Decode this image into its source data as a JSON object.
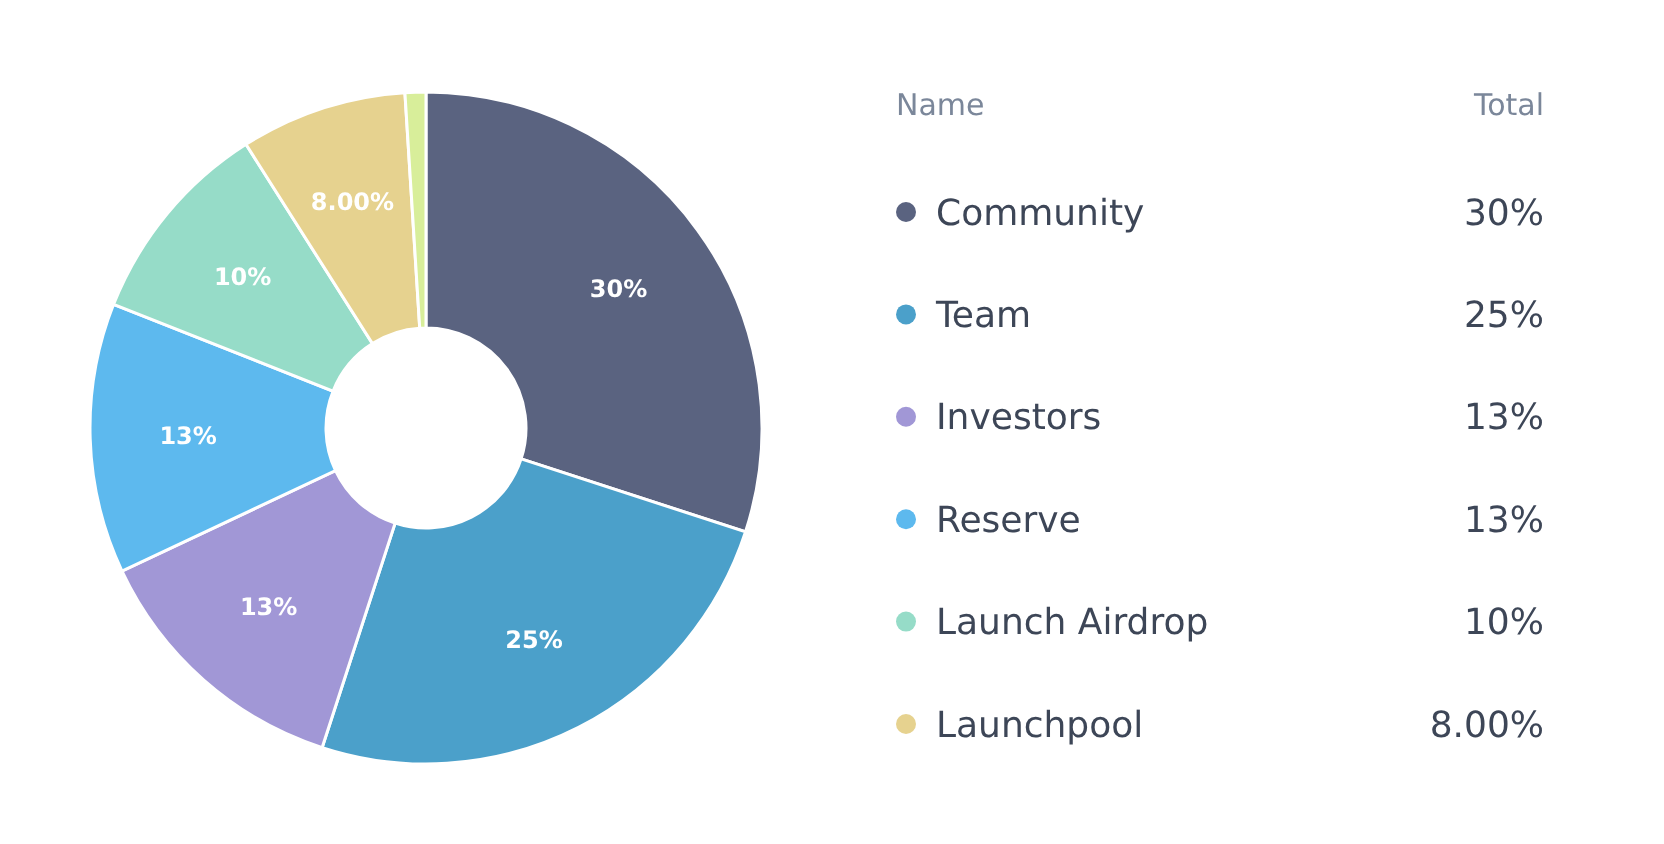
{
  "chart_data": {
    "type": "donut",
    "categories": [
      "Community",
      "Team",
      "Investors",
      "Reserve",
      "Launch Airdrop",
      "Launchpool",
      null
    ],
    "values": [
      30,
      25,
      13,
      13,
      10,
      8,
      1
    ],
    "colors": [
      "#5a6380",
      "#4ba0ca",
      "#a197d6",
      "#5db9ee",
      "#96dcc8",
      "#e6d28f",
      "#d8ee9a"
    ],
    "value_labels": [
      "30%",
      "25%",
      "13%",
      "13%",
      "10%",
      "8.00%",
      null
    ],
    "legend": "right",
    "legend_title": "Name",
    "annotations": [
      "Total"
    ]
  }
}
